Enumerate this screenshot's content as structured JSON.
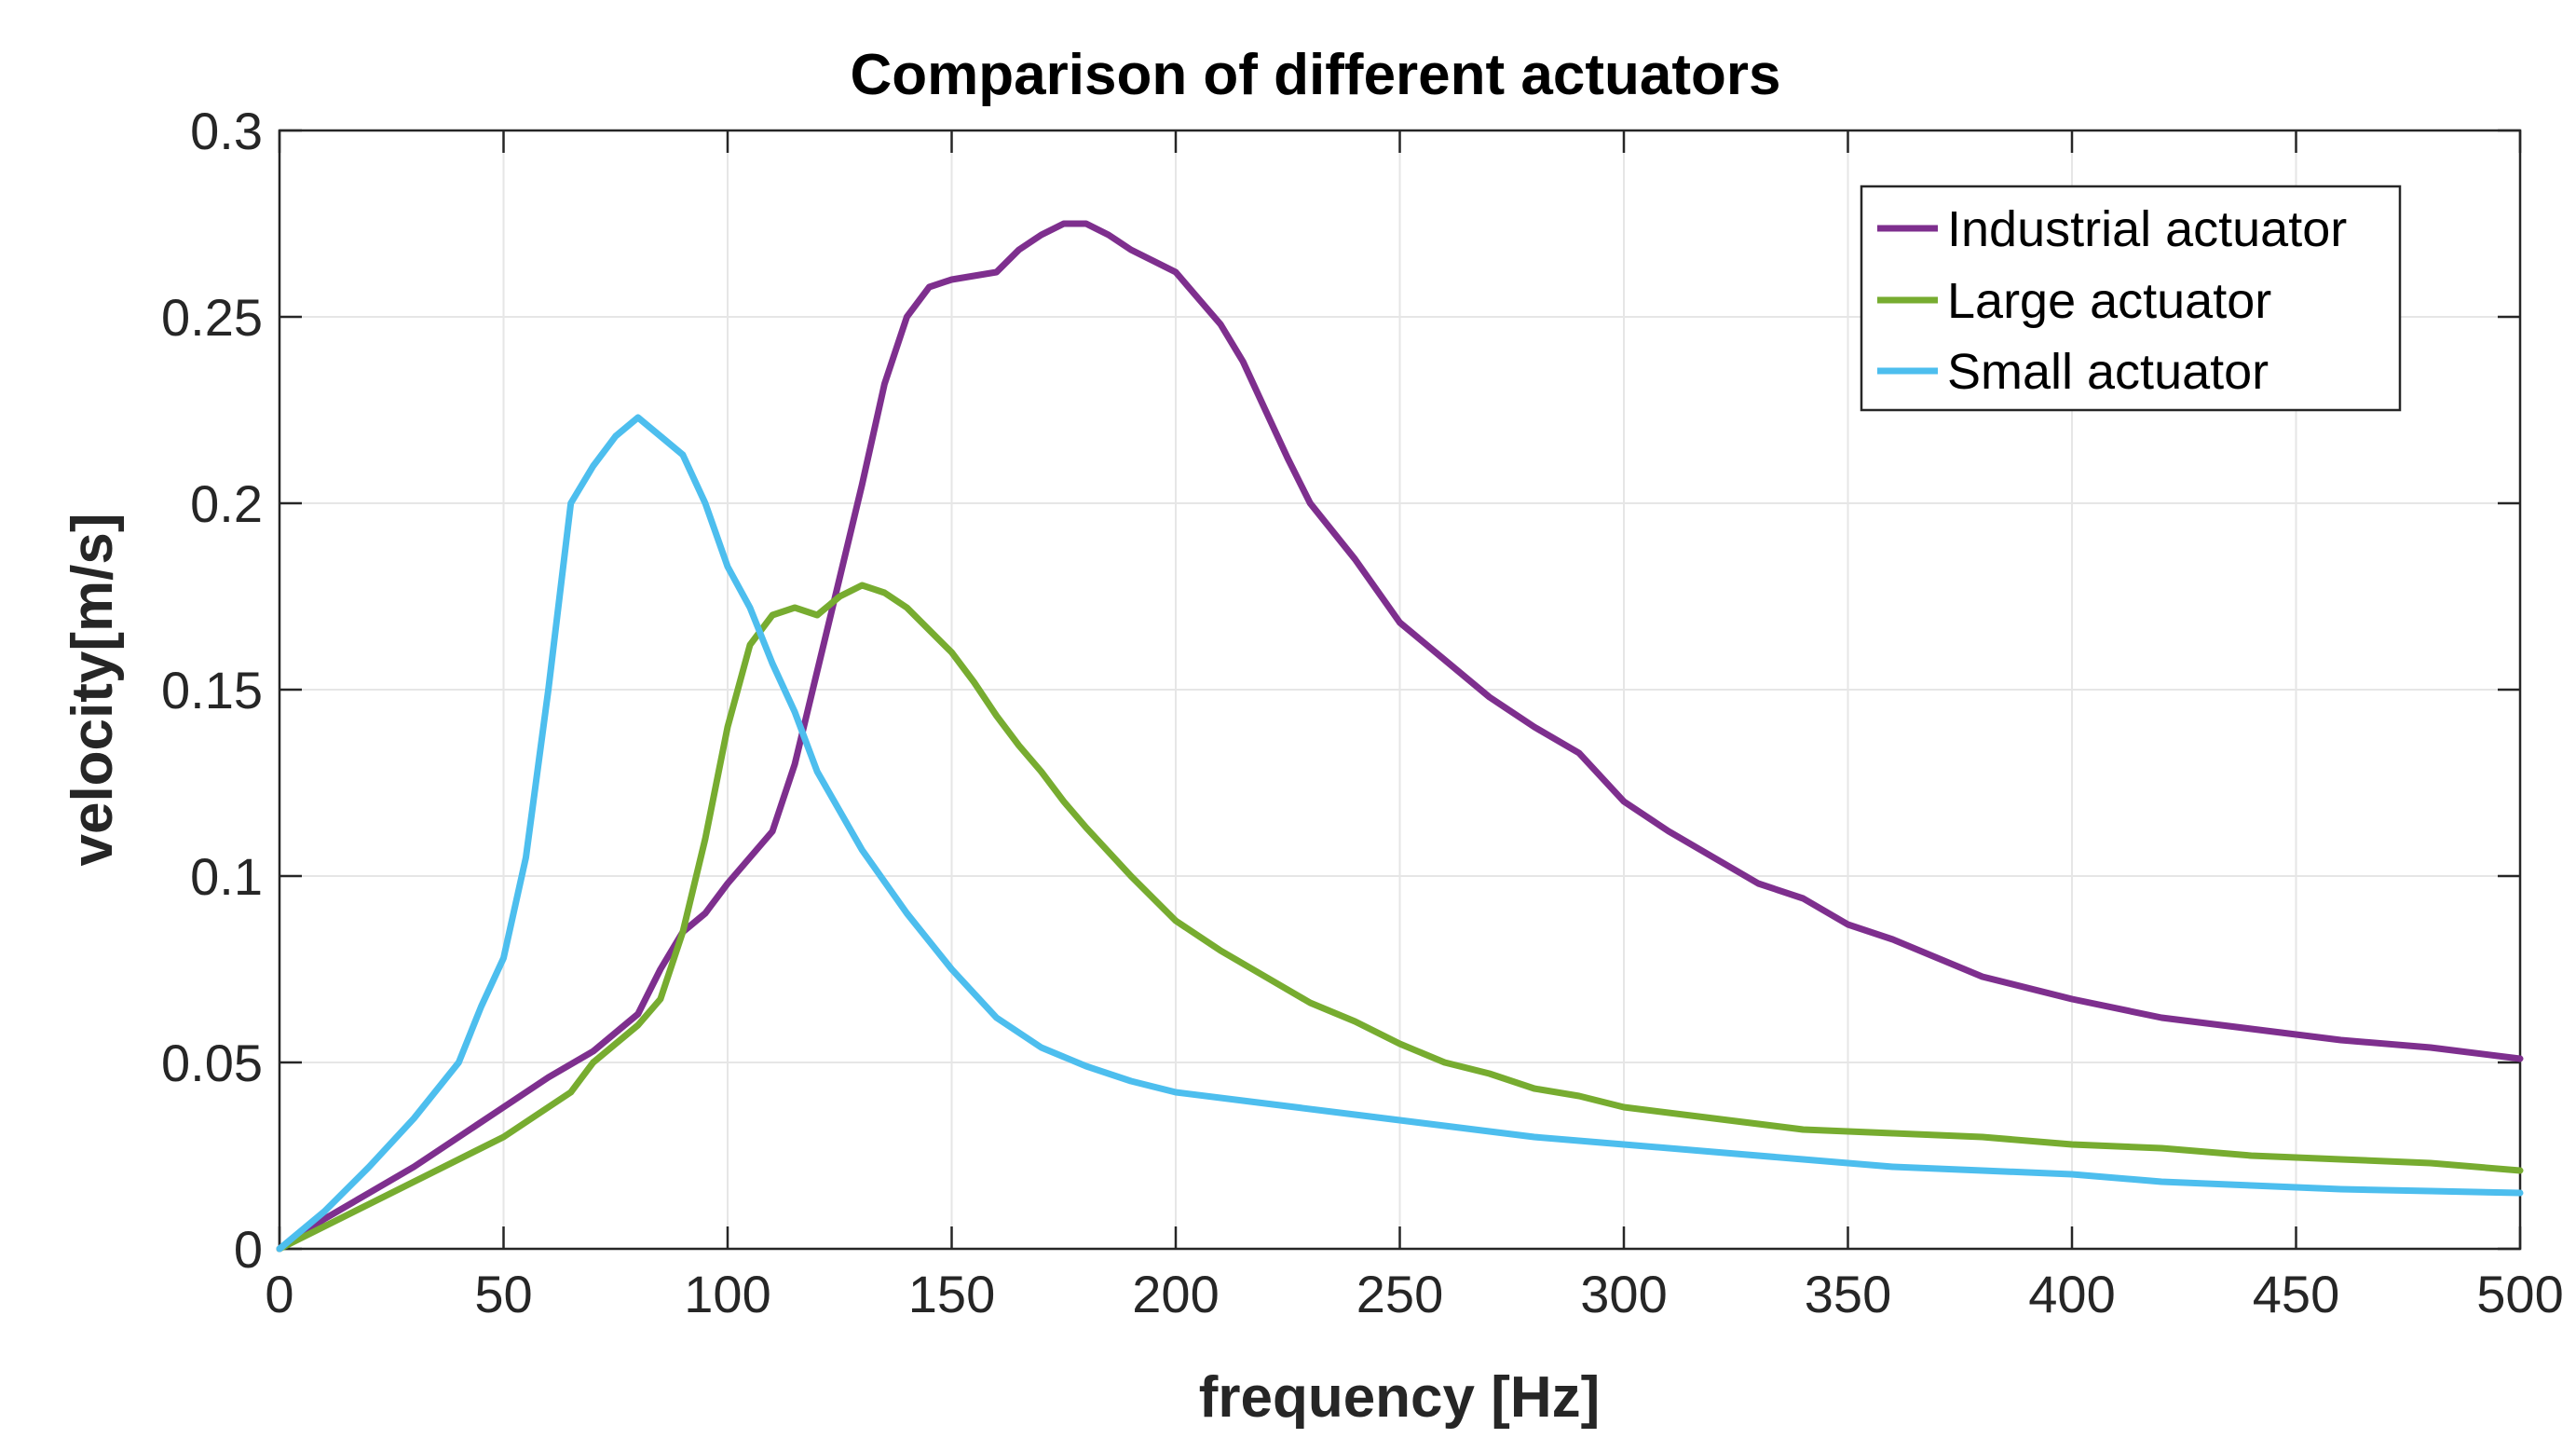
{
  "chart_data": {
    "type": "line",
    "title": "Comparison of different actuators",
    "xlabel": "frequency [Hz]",
    "ylabel": "velocity[m/s]",
    "xlim": [
      0,
      500
    ],
    "ylim": [
      0,
      0.3
    ],
    "grid": true,
    "legend_position": "top-right",
    "x_ticks": [
      0,
      50,
      100,
      150,
      200,
      250,
      300,
      350,
      400,
      450,
      500
    ],
    "x_tick_labels": [
      "0",
      "50",
      "100",
      "150",
      "200",
      "250",
      "300",
      "350",
      "400",
      "450",
      "500"
    ],
    "y_ticks": [
      0,
      0.05,
      0.1,
      0.15,
      0.2,
      0.25,
      0.3
    ],
    "y_tick_labels": [
      "0",
      "0.05",
      "0.1",
      "0.15",
      "0.2",
      "0.25",
      "0.3"
    ],
    "series": [
      {
        "name": "Industrial actuator",
        "color": "#7E2F8E",
        "x": [
          0,
          10,
          20,
          30,
          40,
          50,
          60,
          70,
          80,
          85,
          90,
          95,
          100,
          110,
          115,
          120,
          125,
          130,
          135,
          140,
          145,
          150,
          155,
          160,
          165,
          170,
          175,
          180,
          185,
          190,
          195,
          200,
          205,
          210,
          215,
          220,
          225,
          230,
          240,
          250,
          260,
          270,
          280,
          290,
          300,
          310,
          320,
          330,
          340,
          350,
          360,
          380,
          400,
          420,
          440,
          460,
          480,
          500
        ],
        "values": [
          0,
          0.008,
          0.015,
          0.022,
          0.03,
          0.038,
          0.046,
          0.053,
          0.063,
          0.075,
          0.085,
          0.09,
          0.098,
          0.112,
          0.13,
          0.155,
          0.18,
          0.205,
          0.232,
          0.25,
          0.258,
          0.26,
          0.261,
          0.262,
          0.268,
          0.272,
          0.275,
          0.275,
          0.272,
          0.268,
          0.265,
          0.262,
          0.255,
          0.248,
          0.238,
          0.225,
          0.212,
          0.2,
          0.185,
          0.168,
          0.158,
          0.148,
          0.14,
          0.133,
          0.12,
          0.112,
          0.105,
          0.098,
          0.094,
          0.087,
          0.083,
          0.073,
          0.067,
          0.062,
          0.059,
          0.056,
          0.054,
          0.051
        ]
      },
      {
        "name": "Large actuator",
        "color": "#77AC30",
        "x": [
          0,
          10,
          20,
          30,
          40,
          50,
          60,
          65,
          70,
          80,
          85,
          90,
          95,
          100,
          105,
          110,
          115,
          120,
          125,
          130,
          135,
          140,
          145,
          150,
          155,
          160,
          165,
          170,
          175,
          180,
          190,
          200,
          210,
          220,
          230,
          240,
          250,
          260,
          270,
          280,
          290,
          300,
          320,
          340,
          360,
          380,
          400,
          420,
          440,
          460,
          480,
          500
        ],
        "values": [
          0,
          0.006,
          0.012,
          0.018,
          0.024,
          0.03,
          0.038,
          0.042,
          0.05,
          0.06,
          0.067,
          0.085,
          0.11,
          0.14,
          0.162,
          0.17,
          0.172,
          0.17,
          0.175,
          0.178,
          0.176,
          0.172,
          0.166,
          0.16,
          0.152,
          0.143,
          0.135,
          0.128,
          0.12,
          0.113,
          0.1,
          0.088,
          0.08,
          0.073,
          0.066,
          0.061,
          0.055,
          0.05,
          0.047,
          0.043,
          0.041,
          0.038,
          0.035,
          0.032,
          0.031,
          0.03,
          0.028,
          0.027,
          0.025,
          0.024,
          0.023,
          0.021
        ]
      },
      {
        "name": "Small actuator",
        "color": "#4DBEEE",
        "x": [
          0,
          10,
          20,
          30,
          40,
          45,
          50,
          55,
          60,
          65,
          70,
          75,
          80,
          85,
          90,
          95,
          100,
          105,
          110,
          115,
          120,
          130,
          140,
          150,
          160,
          170,
          180,
          190,
          200,
          220,
          240,
          260,
          280,
          300,
          320,
          340,
          360,
          380,
          400,
          420,
          440,
          460,
          480,
          500
        ],
        "values": [
          0,
          0.01,
          0.022,
          0.035,
          0.05,
          0.065,
          0.078,
          0.105,
          0.15,
          0.2,
          0.21,
          0.218,
          0.223,
          0.218,
          0.213,
          0.2,
          0.183,
          0.172,
          0.157,
          0.144,
          0.128,
          0.107,
          0.09,
          0.075,
          0.062,
          0.054,
          0.049,
          0.045,
          0.042,
          0.039,
          0.036,
          0.033,
          0.03,
          0.028,
          0.026,
          0.024,
          0.022,
          0.021,
          0.02,
          0.018,
          0.017,
          0.016,
          0.0155,
          0.015
        ]
      }
    ]
  }
}
